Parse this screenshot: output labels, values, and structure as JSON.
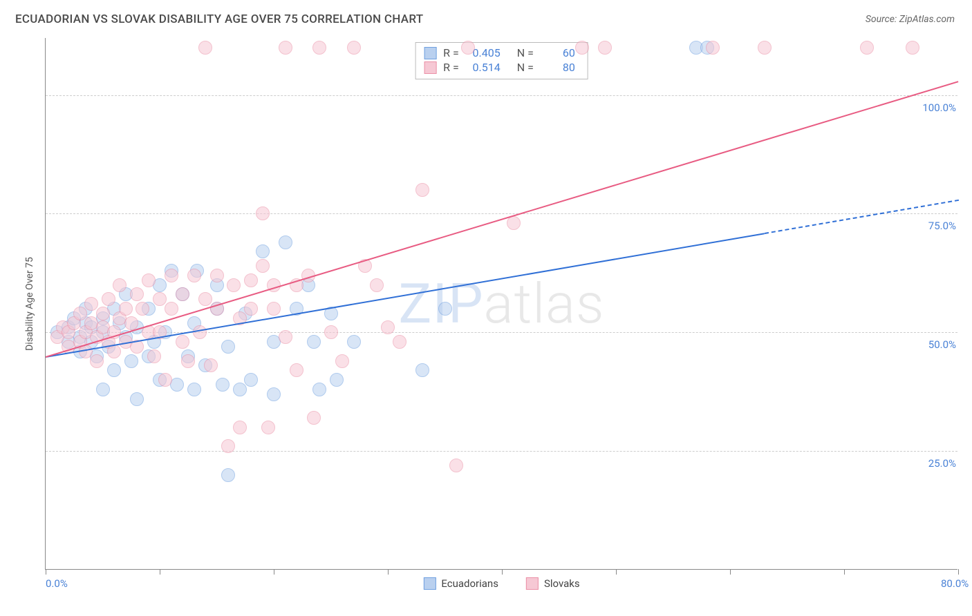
{
  "title": "ECUADORIAN VS SLOVAK DISABILITY AGE OVER 75 CORRELATION CHART",
  "source": "Source: ZipAtlas.com",
  "watermark_a": "ZIP",
  "watermark_b": "atlas",
  "chart": {
    "type": "scatter",
    "y_axis_title": "Disability Age Over 75",
    "xlim": [
      0,
      80
    ],
    "ylim": [
      0,
      112
    ],
    "xtick_positions": [
      0,
      10,
      20,
      30,
      40,
      50,
      60,
      70,
      80
    ],
    "xtick_labels": {
      "0": "0.0%",
      "80": "80.0%"
    },
    "ytick_positions": [
      25,
      50,
      75,
      100
    ],
    "ytick_labels": [
      "25.0%",
      "50.0%",
      "75.0%",
      "100.0%"
    ],
    "grid_color": "#cccccc",
    "background_color": "#ffffff",
    "marker_radius": 10,
    "marker_opacity": 0.55,
    "marker_border_width": 1.5,
    "series": [
      {
        "name": "Ecuadorians",
        "fill": "#b9d0ef",
        "stroke": "#6fa0e0",
        "line_color": "#2f6fd6",
        "R": "0.405",
        "N": "60",
        "points": [
          [
            1,
            50
          ],
          [
            2,
            51
          ],
          [
            2,
            48
          ],
          [
            2.5,
            53
          ],
          [
            3,
            49
          ],
          [
            3,
            46
          ],
          [
            3.5,
            52
          ],
          [
            3.5,
            55
          ],
          [
            4,
            48
          ],
          [
            4,
            51
          ],
          [
            4.5,
            45
          ],
          [
            5,
            53
          ],
          [
            5,
            50
          ],
          [
            5,
            38
          ],
          [
            5.5,
            47
          ],
          [
            6,
            55
          ],
          [
            6,
            42
          ],
          [
            6.5,
            52
          ],
          [
            7,
            49
          ],
          [
            7,
            58
          ],
          [
            7.5,
            44
          ],
          [
            8,
            51
          ],
          [
            8,
            36
          ],
          [
            9,
            45
          ],
          [
            9,
            55
          ],
          [
            9.5,
            48
          ],
          [
            10,
            60
          ],
          [
            10,
            40
          ],
          [
            10.5,
            50
          ],
          [
            11,
            63
          ],
          [
            11.5,
            39
          ],
          [
            12,
            58
          ],
          [
            12.5,
            45
          ],
          [
            13,
            52
          ],
          [
            13,
            38
          ],
          [
            13.3,
            63
          ],
          [
            14,
            43
          ],
          [
            15,
            55
          ],
          [
            15,
            60
          ],
          [
            15.5,
            39
          ],
          [
            16,
            47
          ],
          [
            16,
            20
          ],
          [
            17,
            38
          ],
          [
            17.5,
            54
          ],
          [
            18,
            40
          ],
          [
            19,
            67
          ],
          [
            20,
            48
          ],
          [
            20,
            37
          ],
          [
            21,
            69
          ],
          [
            22,
            55
          ],
          [
            23,
            60
          ],
          [
            23.5,
            48
          ],
          [
            24,
            38
          ],
          [
            25,
            54
          ],
          [
            25.5,
            40
          ],
          [
            27,
            48
          ],
          [
            33,
            42
          ],
          [
            35,
            55
          ],
          [
            57,
            110
          ],
          [
            58,
            110
          ]
        ],
        "trend": {
          "x1": 0,
          "y1": 45,
          "x2": 63,
          "y2": 71,
          "dash_x2": 80,
          "dash_y2": 78
        }
      },
      {
        "name": "Slovaks",
        "fill": "#f6c8d4",
        "stroke": "#eb8fa6",
        "line_color": "#e85b82",
        "R": "0.514",
        "N": "80",
        "points": [
          [
            1,
            49
          ],
          [
            1.5,
            51
          ],
          [
            2,
            47
          ],
          [
            2,
            50
          ],
          [
            2.5,
            52
          ],
          [
            3,
            48
          ],
          [
            3,
            54
          ],
          [
            3.5,
            50
          ],
          [
            3.5,
            46
          ],
          [
            4,
            52
          ],
          [
            4,
            56
          ],
          [
            4.5,
            49
          ],
          [
            4.5,
            44
          ],
          [
            5,
            51
          ],
          [
            5,
            54
          ],
          [
            5.5,
            48
          ],
          [
            5.5,
            57
          ],
          [
            6,
            50
          ],
          [
            6,
            46
          ],
          [
            6.5,
            53
          ],
          [
            6.5,
            60
          ],
          [
            7,
            48
          ],
          [
            7,
            55
          ],
          [
            7.5,
            52
          ],
          [
            8,
            58
          ],
          [
            8,
            47
          ],
          [
            8.5,
            55
          ],
          [
            9,
            50
          ],
          [
            9,
            61
          ],
          [
            9.5,
            45
          ],
          [
            10,
            57
          ],
          [
            10,
            50
          ],
          [
            10.5,
            40
          ],
          [
            11,
            55
          ],
          [
            11,
            62
          ],
          [
            12,
            48
          ],
          [
            12,
            58
          ],
          [
            12.5,
            44
          ],
          [
            13,
            62
          ],
          [
            13.5,
            50
          ],
          [
            14,
            57
          ],
          [
            14,
            110
          ],
          [
            14.5,
            43
          ],
          [
            15,
            62
          ],
          [
            15,
            55
          ],
          [
            16,
            26
          ],
          [
            16.5,
            60
          ],
          [
            17,
            53
          ],
          [
            17,
            30
          ],
          [
            18,
            55
          ],
          [
            18,
            61
          ],
          [
            19,
            64
          ],
          [
            19,
            75
          ],
          [
            19.5,
            30
          ],
          [
            20,
            55
          ],
          [
            20,
            60
          ],
          [
            21,
            49
          ],
          [
            21,
            110
          ],
          [
            22,
            60
          ],
          [
            22,
            42
          ],
          [
            23,
            62
          ],
          [
            23.5,
            32
          ],
          [
            24,
            110
          ],
          [
            25,
            50
          ],
          [
            26,
            44
          ],
          [
            27,
            110
          ],
          [
            28,
            64
          ],
          [
            29,
            60
          ],
          [
            30,
            51
          ],
          [
            31,
            48
          ],
          [
            33,
            80
          ],
          [
            36,
            22
          ],
          [
            37,
            110
          ],
          [
            41,
            73
          ],
          [
            47,
            110
          ],
          [
            49,
            110
          ],
          [
            58.5,
            110
          ],
          [
            63,
            110
          ],
          [
            72,
            110
          ],
          [
            76,
            110
          ]
        ],
        "trend": {
          "x1": 0,
          "y1": 45,
          "x2": 80,
          "y2": 103
        }
      }
    ],
    "legend_labels": [
      "Ecuadorians",
      "Slovaks"
    ]
  }
}
